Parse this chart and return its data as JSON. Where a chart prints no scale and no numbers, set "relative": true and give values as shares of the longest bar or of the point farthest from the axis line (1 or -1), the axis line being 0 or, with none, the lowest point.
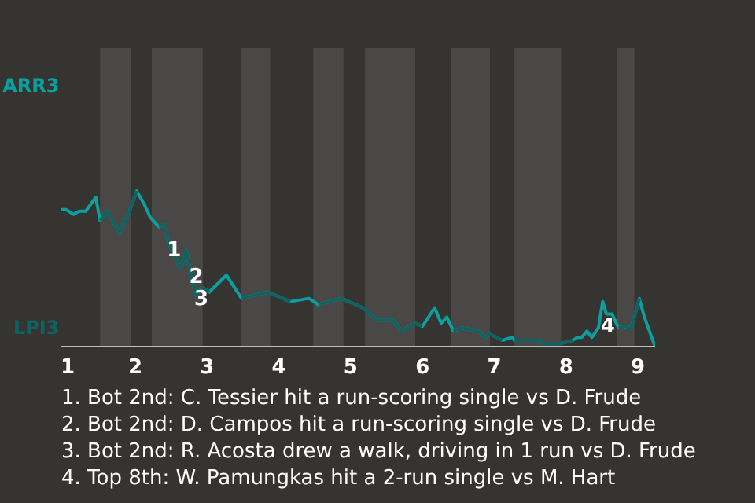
{
  "chart_data": {
    "type": "line",
    "relative": true,
    "x": [
      0.96,
      1.04,
      1.14,
      1.22,
      1.31,
      1.45,
      1.51,
      1.61,
      1.78,
      1.92,
      2.02,
      2.12,
      2.21,
      2.33,
      2.4,
      2.48,
      2.63,
      2.71,
      2.79,
      2.85,
      2.94,
      3.03,
      3.27,
      3.48,
      3.85,
      4.16,
      4.42,
      4.55,
      4.87,
      5.17,
      5.37,
      5.59,
      5.71,
      5.9,
      6.0,
      6.17,
      6.26,
      6.34,
      6.43,
      6.55,
      6.77,
      6.87,
      6.94,
      7.11,
      7.25,
      7.28,
      7.63,
      7.68,
      7.93,
      8.09,
      8.16,
      8.22,
      8.29,
      8.36,
      8.45,
      8.51,
      8.56,
      8.64,
      8.73,
      8.82,
      8.91,
      9.02,
      9.09,
      9.24
    ],
    "series": [
      {
        "name": "ARR3",
        "color": "#0aa0a0",
        "values": [
          0.88,
          0.88,
          0.85,
          0.87,
          0.87,
          0.96,
          0.81,
          0.87,
          0.73,
          0.87,
          1,
          0.92,
          0.83,
          0.77,
          0.79,
          0.65,
          0.5,
          0.62,
          0.44,
          0.33,
          0.38,
          0.35,
          0.46,
          0.31,
          0.35,
          0.29,
          0.31,
          0.27,
          0.31,
          0.25,
          0.17,
          0.17,
          0.1,
          0.15,
          0.13,
          0.25,
          0.15,
          0.19,
          0.1,
          0.12,
          0.1,
          0.06,
          0.08,
          0.04,
          0.06,
          0.04,
          0.04,
          0.02,
          0.02,
          0.04,
          0.06,
          0.06,
          0.1,
          0.06,
          0.12,
          0.29,
          0.21,
          0.21,
          0.12,
          0.13,
          0.12,
          0.31,
          0.19,
          0
        ]
      },
      {
        "name": "LPI3",
        "color": "#0f6262",
        "values": [
          null,
          null,
          null,
          null,
          null,
          null,
          0.81,
          0.87,
          0.73,
          0.87,
          1,
          null,
          null,
          0.77,
          0.79,
          0.65,
          0.5,
          0.62,
          0.44,
          0.33,
          0.38,
          0.35,
          null,
          0.31,
          0.35,
          0.29,
          null,
          0.27,
          0.31,
          0.25,
          0.17,
          0.17,
          0.1,
          0.15,
          0.13,
          null,
          null,
          null,
          0.1,
          0.12,
          0.1,
          0.06,
          0.08,
          0.04,
          null,
          0.04,
          0.04,
          0.02,
          0.02,
          0.04,
          null,
          null,
          null,
          null,
          null,
          null,
          null,
          null,
          0.12,
          0.13,
          0.12,
          0.31,
          null,
          null
        ]
      }
    ],
    "xlim": [
      0.96,
      9.24
    ],
    "xticks": [
      1,
      2,
      3,
      4,
      5,
      6,
      7,
      8,
      9
    ],
    "bands": [
      {
        "axis": "x",
        "from": 1.51,
        "to": 1.94,
        "color": "#4a4846"
      },
      {
        "axis": "x",
        "from": 2.23,
        "to": 2.94,
        "color": "#4a4846"
      },
      {
        "axis": "x",
        "from": 3.48,
        "to": 3.88,
        "color": "#4a4846"
      },
      {
        "axis": "x",
        "from": 4.48,
        "to": 4.9,
        "color": "#4a4846"
      },
      {
        "axis": "x",
        "from": 5.2,
        "to": 5.9,
        "color": "#4a4846"
      },
      {
        "axis": "x",
        "from": 6.4,
        "to": 6.94,
        "color": "#4a4846"
      },
      {
        "axis": "x",
        "from": 7.28,
        "to": 7.93,
        "color": "#4a4846"
      },
      {
        "axis": "x",
        "from": 8.71,
        "to": 8.95,
        "color": "#4a4846"
      }
    ],
    "annotations": [
      {
        "text": "1",
        "x": 2.54,
        "y": 0.63
      },
      {
        "text": "2",
        "x": 2.85,
        "y": 0.46
      },
      {
        "text": "3",
        "x": 2.92,
        "y": 0.32
      },
      {
        "text": "4",
        "x": 8.58,
        "y": 0.14
      },
      "1. Bot 2nd: C. Tessier hit a run-scoring single vs D. Frude",
      "2. Bot 2nd: D. Campos hit a run-scoring single vs D. Frude",
      "3. Bot 2nd: R. Acosta drew a walk, driving in 1 run vs D. Frude",
      "4. Top 8th: W. Pamungkas hit a 2-run single vs M. Hart"
    ]
  }
}
